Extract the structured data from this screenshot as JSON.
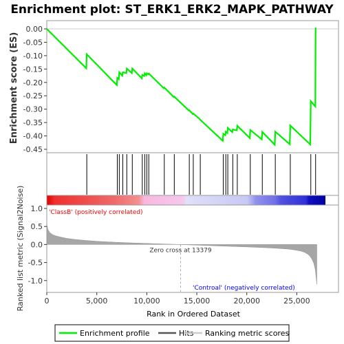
{
  "chart_data": {
    "type": "line",
    "title": "Enrichment plot: ST_ERK1_ERK2_MAPK_PATHWAY",
    "xlabel": "Rank in Ordered Dataset",
    "ylabel_top": "Enrichment score (ES)",
    "ylabel_bottom": "Ranked list metric (Signal2Noise)",
    "xlim": [
      0,
      28000
    ],
    "x_ticks": [
      0,
      5000,
      10000,
      15000,
      20000,
      25000
    ],
    "x_tick_labels": [
      "0",
      "5,000",
      "10,000",
      "15,000",
      "20,000",
      "25,000"
    ],
    "es_ylim": [
      -0.45,
      0.0
    ],
    "es_ticks": [
      0.0,
      -0.05,
      -0.1,
      -0.15,
      -0.2,
      -0.25,
      -0.3,
      -0.35,
      -0.4,
      -0.45
    ],
    "es_tick_labels": [
      "0.00",
      "-0.05",
      "-0.10",
      "-0.15",
      "-0.20",
      "-0.25",
      "-0.30",
      "-0.35",
      "-0.40",
      "-0.45"
    ],
    "metric_ylim": [
      -1.1,
      1.0
    ],
    "metric_ticks": [
      1.0,
      0.5,
      0.0,
      -0.5,
      -1.0
    ],
    "metric_tick_labels": [
      "1.0",
      "0.5",
      "0.0",
      "-0.5",
      "-1.0"
    ],
    "series": [
      {
        "name": "Enrichment profile",
        "color": "#00ee00",
        "x": [
          0,
          3950,
          4000,
          7000,
          7050,
          7200,
          7250,
          7550,
          7600,
          7950,
          8000,
          8500,
          8550,
          9500,
          9550,
          9750,
          9800,
          9950,
          10000,
          10150,
          10200,
          11700,
          11750,
          12700,
          12750,
          14200,
          14250,
          14600,
          14650,
          15300,
          15350,
          17600,
          17650,
          17850,
          17900,
          18050,
          18100,
          18550,
          18600,
          19000,
          19050,
          20300,
          20350,
          21500,
          21550,
          22800,
          22850,
          24300,
          24350,
          26350,
          26400,
          26850,
          26880
        ],
        "y": [
          0.0,
          -0.147,
          -0.095,
          -0.21,
          -0.183,
          -0.188,
          -0.162,
          -0.175,
          -0.162,
          -0.165,
          -0.148,
          -0.165,
          -0.148,
          -0.185,
          -0.172,
          -0.176,
          -0.166,
          -0.173,
          -0.166,
          -0.17,
          -0.167,
          -0.222,
          -0.219,
          -0.255,
          -0.253,
          -0.305,
          -0.304,
          -0.318,
          -0.316,
          -0.337,
          -0.34,
          -0.418,
          -0.392,
          -0.397,
          -0.384,
          -0.389,
          -0.37,
          -0.386,
          -0.376,
          -0.379,
          -0.362,
          -0.408,
          -0.378,
          -0.413,
          -0.385,
          -0.433,
          -0.384,
          -0.431,
          -0.361,
          -0.432,
          -0.27,
          -0.29,
          0.005
        ]
      }
    ],
    "hits": [
      4000,
      7050,
      7250,
      7600,
      8000,
      8550,
      9550,
      9800,
      10000,
      10200,
      11750,
      12750,
      14250,
      14650,
      15350,
      17650,
      17900,
      18100,
      18600,
      19050,
      20350,
      21550,
      22850,
      24350,
      26400,
      26880
    ],
    "metric": {
      "name": "Ranking metric scores",
      "x": [
        0,
        100,
        300,
        600,
        1000,
        1500,
        2000,
        3000,
        4000,
        5000,
        6000,
        7000,
        8000,
        9000,
        10000,
        11000,
        12000,
        13000,
        13379,
        14000,
        15000,
        16000,
        17000,
        18000,
        19000,
        20000,
        21000,
        22000,
        23000,
        24000,
        24500,
        25000,
        25500,
        25800,
        26100,
        26300,
        26500,
        26700,
        26850,
        26950,
        27000
      ],
      "y": [
        0.58,
        0.42,
        0.33,
        0.27,
        0.23,
        0.2,
        0.17,
        0.135,
        0.11,
        0.09,
        0.075,
        0.06,
        0.05,
        0.04,
        0.03,
        0.02,
        0.012,
        0.004,
        0.0,
        -0.008,
        -0.018,
        -0.028,
        -0.038,
        -0.048,
        -0.058,
        -0.068,
        -0.078,
        -0.09,
        -0.105,
        -0.125,
        -0.14,
        -0.16,
        -0.19,
        -0.22,
        -0.27,
        -0.32,
        -0.4,
        -0.52,
        -0.7,
        -0.95,
        -1.1
      ]
    },
    "zero_cross_rank": 13379,
    "annotations": {
      "zero_cross": "Zero cross at 13379",
      "pos_label": "'ClassB' (positively correlated)",
      "neg_label": "'Controal' (negatively correlated)"
    },
    "legend": {
      "placement": "bottom",
      "items": [
        "Enrichment profile",
        "Hits",
        "Ranking metric scores"
      ]
    },
    "colors": {
      "profile": "#00ee00",
      "hits": "#000000",
      "metric": "#999999",
      "pos_text": "#ff0000",
      "neg_text": "#0000ff"
    }
  }
}
